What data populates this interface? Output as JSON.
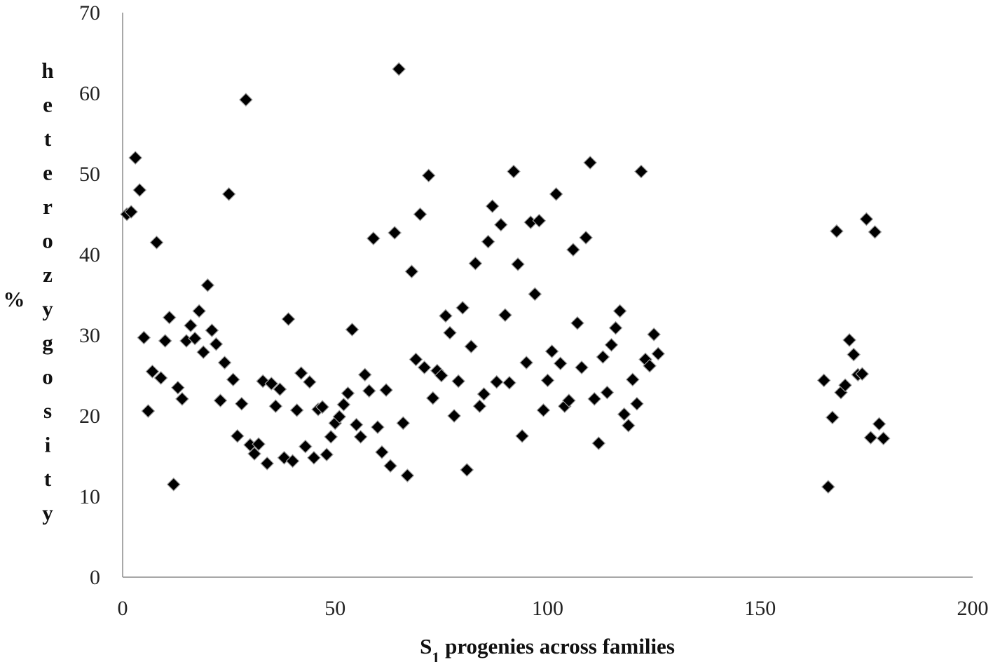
{
  "chart_data": {
    "type": "scatter",
    "xlabel": "S1 progenies across families",
    "xlabel_main": "S",
    "xlabel_sub": "1",
    "xlabel_rest": " progenies across families",
    "ylabel": "% heterozygosity",
    "ylabel_percent": "%",
    "ylabel_letters": [
      "h",
      "e",
      "t",
      "e",
      "r",
      "o",
      "z",
      "y",
      "g",
      "o",
      "s",
      "i",
      "t",
      "y"
    ],
    "xlim": [
      0,
      200
    ],
    "ylim": [
      0,
      70
    ],
    "x_ticks": [
      "0",
      "50",
      "100",
      "150",
      "200"
    ],
    "y_ticks": [
      "0",
      "10",
      "20",
      "30",
      "40",
      "50",
      "60",
      "70"
    ],
    "grid": false,
    "marker": "diamond",
    "series": [
      {
        "points": [
          [
            1,
            45.0
          ],
          [
            2,
            45.3
          ],
          [
            3,
            52.0
          ],
          [
            4,
            48.0
          ],
          [
            5,
            29.7
          ],
          [
            6,
            20.6
          ],
          [
            7,
            25.5
          ],
          [
            8,
            41.5
          ],
          [
            9,
            24.7
          ],
          [
            10,
            29.3
          ],
          [
            11,
            32.2
          ],
          [
            12,
            11.5
          ],
          [
            13,
            23.5
          ],
          [
            14,
            22.1
          ],
          [
            15,
            29.3
          ],
          [
            16,
            31.2
          ],
          [
            17,
            29.6
          ],
          [
            18,
            33.0
          ],
          [
            19,
            27.9
          ],
          [
            20,
            36.2
          ],
          [
            21,
            30.6
          ],
          [
            22,
            28.9
          ],
          [
            23,
            21.9
          ],
          [
            24,
            26.6
          ],
          [
            25,
            47.5
          ],
          [
            26,
            24.5
          ],
          [
            27,
            17.5
          ],
          [
            28,
            21.5
          ],
          [
            29,
            59.2
          ],
          [
            30,
            16.4
          ],
          [
            31,
            15.3
          ],
          [
            32,
            16.5
          ],
          [
            33,
            24.3
          ],
          [
            34,
            14.1
          ],
          [
            35,
            24.0
          ],
          [
            36,
            21.2
          ],
          [
            37,
            23.3
          ],
          [
            38,
            14.8
          ],
          [
            39,
            32.0
          ],
          [
            40,
            14.4
          ],
          [
            41,
            20.7
          ],
          [
            42,
            25.3
          ],
          [
            43,
            16.2
          ],
          [
            44,
            24.2
          ],
          [
            45,
            14.8
          ],
          [
            46,
            20.8
          ],
          [
            47,
            21.1
          ],
          [
            48,
            15.2
          ],
          [
            49,
            17.4
          ],
          [
            50,
            19.1
          ],
          [
            51,
            19.9
          ],
          [
            52,
            21.4
          ],
          [
            53,
            22.8
          ],
          [
            54,
            30.7
          ],
          [
            55,
            18.9
          ],
          [
            56,
            17.4
          ],
          [
            57,
            25.1
          ],
          [
            58,
            23.1
          ],
          [
            59,
            42.0
          ],
          [
            60,
            18.6
          ],
          [
            61,
            15.5
          ],
          [
            62,
            23.2
          ],
          [
            63,
            13.8
          ],
          [
            64,
            42.7
          ],
          [
            65,
            63.0
          ],
          [
            66,
            19.1
          ],
          [
            67,
            12.6
          ],
          [
            68,
            37.9
          ],
          [
            69,
            27.0
          ],
          [
            70,
            45.0
          ],
          [
            71,
            26.0
          ],
          [
            72,
            49.8
          ],
          [
            73,
            22.2
          ],
          [
            74,
            25.6
          ],
          [
            75,
            25.0
          ],
          [
            76,
            32.4
          ],
          [
            77,
            30.3
          ],
          [
            78,
            20.0
          ],
          [
            79,
            24.3
          ],
          [
            80,
            33.4
          ],
          [
            81,
            13.3
          ],
          [
            82,
            28.6
          ],
          [
            83,
            38.9
          ],
          [
            84,
            21.2
          ],
          [
            85,
            22.7
          ],
          [
            86,
            41.6
          ],
          [
            87,
            46.0
          ],
          [
            88,
            24.2
          ],
          [
            89,
            43.7
          ],
          [
            90,
            32.5
          ],
          [
            91,
            24.1
          ],
          [
            92,
            50.3
          ],
          [
            93,
            38.8
          ],
          [
            94,
            17.5
          ],
          [
            95,
            26.6
          ],
          [
            96,
            44.0
          ],
          [
            97,
            35.1
          ],
          [
            98,
            44.2
          ],
          [
            99,
            20.7
          ],
          [
            100,
            24.4
          ],
          [
            101,
            28.0
          ],
          [
            102,
            47.5
          ],
          [
            103,
            26.5
          ],
          [
            104,
            21.2
          ],
          [
            105,
            21.9
          ],
          [
            106,
            40.6
          ],
          [
            107,
            31.5
          ],
          [
            108,
            26.0
          ],
          [
            109,
            42.1
          ],
          [
            110,
            51.4
          ],
          [
            111,
            22.1
          ],
          [
            112,
            16.6
          ],
          [
            113,
            27.3
          ],
          [
            114,
            22.9
          ],
          [
            115,
            28.8
          ],
          [
            116,
            30.9
          ],
          [
            117,
            33.0
          ],
          [
            118,
            20.2
          ],
          [
            119,
            18.8
          ],
          [
            120,
            24.5
          ],
          [
            121,
            21.5
          ],
          [
            122,
            50.3
          ],
          [
            123,
            27.0
          ],
          [
            124,
            26.2
          ],
          [
            125,
            30.1
          ],
          [
            126,
            27.7
          ],
          [
            165,
            24.4
          ],
          [
            166,
            11.2
          ],
          [
            167,
            19.8
          ],
          [
            168,
            42.9
          ],
          [
            169,
            22.9
          ],
          [
            170,
            23.8
          ],
          [
            171,
            29.4
          ],
          [
            172,
            27.6
          ],
          [
            173,
            25.1
          ],
          [
            174,
            25.2
          ],
          [
            175,
            44.4
          ],
          [
            176,
            17.3
          ],
          [
            177,
            42.8
          ],
          [
            178,
            19.0
          ],
          [
            179,
            17.2
          ]
        ]
      }
    ]
  }
}
